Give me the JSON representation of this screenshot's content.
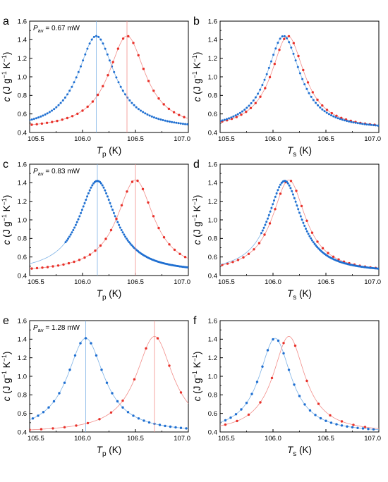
{
  "figure_panels": [
    {
      "letter": "a",
      "xvar": "T",
      "xsub": "p",
      "pav_label": "P",
      "pav_sub": "av",
      "pav_value": "= 0.67 mW"
    },
    {
      "letter": "b",
      "xvar": "T",
      "xsub": "s"
    },
    {
      "letter": "c",
      "xvar": "T",
      "xsub": "p",
      "pav_label": "P",
      "pav_sub": "av",
      "pav_value": "= 0.83 mW"
    },
    {
      "letter": "d",
      "xvar": "T",
      "xsub": "s"
    },
    {
      "letter": "e",
      "xvar": "T",
      "xsub": "p",
      "pav_label": "P",
      "pav_sub": "av",
      "pav_value": "= 1.28 mW"
    },
    {
      "letter": "f",
      "xvar": "T",
      "xsub": "s"
    }
  ],
  "axis_text": {
    "ylabel": "c (J g−1 K−1)",
    "xunit": "(K)"
  },
  "colors": {
    "blue": "#1f6fd1",
    "red": "#e8312a",
    "blue_line": "#7fb3e6",
    "red_line": "#f28e8a"
  },
  "chart_data": [
    {
      "type": "scatter",
      "panel": "a",
      "xlim": [
        105.5,
        107.0
      ],
      "ylim": [
        0.4,
        1.6
      ],
      "xticks": [
        "105.5",
        "106.0",
        "106.5",
        "107.0"
      ],
      "yticks": [
        "0.4",
        "0.6",
        "0.8",
        "1.0",
        "1.2",
        "1.4",
        "1.6"
      ],
      "xlabel": "T p (K)",
      "ylabel": "c (J g−1 K−1)",
      "grid": false,
      "series": [
        {
          "color": "blue",
          "peak": 106.13,
          "peak_c": 1.44,
          "base_c": 0.43,
          "width": 0.52,
          "step": 0.021,
          "range": [
            105.5,
            107.0
          ],
          "vline": 106.13
        },
        {
          "color": "red",
          "peak": 106.42,
          "peak_c": 1.44,
          "base_c": 0.43,
          "width": 0.52,
          "step": 0.048,
          "range": [
            105.52,
            107.0
          ],
          "vline": 106.42
        }
      ]
    },
    {
      "type": "scatter",
      "panel": "b",
      "xlim": [
        105.5,
        107.0
      ],
      "ylim": [
        0.4,
        1.6
      ],
      "xticks": [
        "105.5",
        "106.0",
        "106.5",
        "107.0"
      ],
      "yticks": [
        "0.4",
        "0.6",
        "0.8",
        "1.0",
        "1.2",
        "1.4",
        "1.6"
      ],
      "xlabel": "T s (K)",
      "ylabel": "c (J g−1 K−1)",
      "grid": false,
      "series": [
        {
          "color": "red",
          "peak": 106.14,
          "peak_c": 1.44,
          "base_c": 0.43,
          "width": 0.47,
          "step": 0.045,
          "range": [
            105.52,
            107.0
          ]
        },
        {
          "color": "blue",
          "peak": 106.1,
          "peak_c": 1.44,
          "base_c": 0.43,
          "width": 0.47,
          "step": 0.021,
          "range": [
            105.5,
            107.0
          ]
        }
      ]
    },
    {
      "type": "scatter",
      "panel": "c",
      "xlim": [
        105.5,
        107.0
      ],
      "ylim": [
        0.4,
        1.6
      ],
      "xticks": [
        "105.5",
        "106.0",
        "106.5",
        "107.0"
      ],
      "yticks": [
        "0.4",
        "0.6",
        "0.8",
        "1.0",
        "1.2",
        "1.4",
        "1.6"
      ],
      "xlabel": "T p (K)",
      "ylabel": "c (J g−1 K−1)",
      "grid": false,
      "series": [
        {
          "color": "blue",
          "peak": 106.14,
          "peak_c": 1.42,
          "base_c": 0.43,
          "width": 0.52,
          "step": 0.012,
          "range": [
            105.84,
            107.0
          ],
          "vline": 106.14
        },
        {
          "color": "red",
          "peak": 106.5,
          "peak_c": 1.43,
          "base_c": 0.43,
          "width": 0.52,
          "step": 0.05,
          "range": [
            105.52,
            107.0
          ],
          "vline": 106.5
        }
      ]
    },
    {
      "type": "scatter",
      "panel": "d",
      "xlim": [
        105.5,
        107.0
      ],
      "ylim": [
        0.4,
        1.6
      ],
      "xticks": [
        "105.5",
        "106.0",
        "106.5",
        "107.0"
      ],
      "yticks": [
        "0.4",
        "0.6",
        "0.8",
        "1.0",
        "1.2",
        "1.4",
        "1.6"
      ],
      "xlabel": "T s (K)",
      "ylabel": "c (J g−1 K−1)",
      "grid": false,
      "series": [
        {
          "color": "red",
          "peak": 106.15,
          "peak_c": 1.43,
          "base_c": 0.43,
          "width": 0.47,
          "step": 0.05,
          "range": [
            105.52,
            107.0
          ]
        },
        {
          "color": "blue",
          "peak": 106.11,
          "peak_c": 1.42,
          "base_c": 0.43,
          "width": 0.47,
          "step": 0.012,
          "range": [
            105.89,
            107.0
          ]
        }
      ]
    },
    {
      "type": "scatter",
      "panel": "e",
      "xlim": [
        105.5,
        107.0
      ],
      "ylim": [
        0.4,
        1.6
      ],
      "xticks": [
        "105.5",
        "106.0",
        "106.5",
        "107.0"
      ],
      "yticks": [
        "0.4",
        "0.6",
        "0.8",
        "1.0",
        "1.2",
        "1.4",
        "1.6"
      ],
      "xlabel": "T p (K)",
      "ylabel": "c (J g−1 K−1)",
      "grid": false,
      "series": [
        {
          "color": "blue",
          "peak": 106.03,
          "peak_c": 1.41,
          "base_c": 0.39,
          "width": 0.52,
          "step": 0.05,
          "range": [
            105.53,
            107.0
          ],
          "vline": 106.03,
          "line": true
        },
        {
          "color": "red",
          "peak": 106.68,
          "peak_c": 1.43,
          "base_c": 0.39,
          "width": 0.52,
          "step": 0.11,
          "range": [
            105.5,
            107.0
          ],
          "vline": 106.68,
          "line": true
        }
      ]
    },
    {
      "type": "scatter",
      "panel": "f",
      "xlim": [
        105.5,
        107.0
      ],
      "ylim": [
        0.4,
        1.6
      ],
      "xticks": [
        "105.5",
        "106.0",
        "106.5",
        "107.0"
      ],
      "yticks": [
        "0.4",
        "0.6",
        "0.8",
        "1.0",
        "1.2",
        "1.4",
        "1.6"
      ],
      "xlabel": "T s (K)",
      "ylabel": "c (J g−1 K−1)",
      "grid": false,
      "series": [
        {
          "color": "blue",
          "peak": 106.02,
          "peak_c": 1.41,
          "base_c": 0.39,
          "width": 0.45,
          "step": 0.05,
          "range": [
            105.55,
            106.98
          ],
          "line": true
        },
        {
          "color": "red",
          "peak": 106.15,
          "peak_c": 1.43,
          "base_c": 0.39,
          "width": 0.45,
          "step": 0.11,
          "range": [
            105.55,
            106.96
          ],
          "line": true
        }
      ]
    }
  ]
}
